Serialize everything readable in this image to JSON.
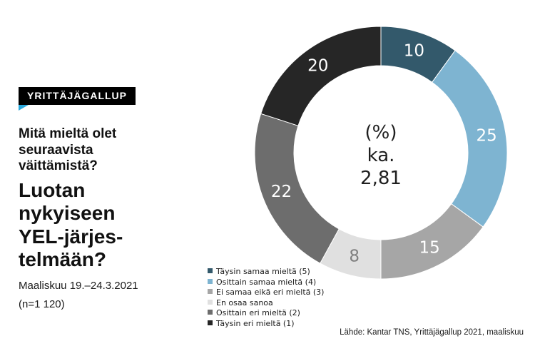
{
  "header": {
    "badge": "YRITTÄJÄGALLUP",
    "question_lines": [
      "Mitä mieltä olet",
      "seuraavista",
      "väittämistä?"
    ],
    "title_lines": [
      "Luotan",
      "nykyiseen",
      "YEL-järjes-",
      "telmään?"
    ],
    "period": "Maaliskuu 19.–24.3.2021",
    "sample": "(n=1 120)"
  },
  "chart_data": {
    "type": "pie",
    "subtype": "donut",
    "title": "Luotan nykyiseen YEL-järjestelmään? (%)",
    "direction": "clockwise",
    "start_angle_deg": 0,
    "legend_position": "bottom-left",
    "center_lines": [
      "(%)",
      "ka.",
      "2,81"
    ],
    "segments": [
      {
        "label": "Täysin samaa mieltä (5)",
        "value": 10,
        "color": "#33596b",
        "value_label_color": "#ffffff"
      },
      {
        "label": "Osittain samaa mieltä (4)",
        "value": 25,
        "color": "#7eb4d1",
        "value_label_color": "#ffffff"
      },
      {
        "label": "Ei samaa eikä eri mieltä (3)",
        "value": 15,
        "color": "#a6a6a6",
        "value_label_color": "#ffffff"
      },
      {
        "label": "En osaa sanoa",
        "value": 8,
        "color": "#e0e0e0",
        "value_label_color": "#7f7f7f"
      },
      {
        "label": "Osittain eri mieltä (2)",
        "value": 22,
        "color": "#6d6d6d",
        "value_label_color": "#ffffff"
      },
      {
        "label": "Täysin eri mieltä (1)",
        "value": 20,
        "color": "#262626",
        "value_label_color": "#ffffff"
      }
    ]
  },
  "footer": {
    "source": "Lähde: Kantar TNS, Yrittäjägallup 2021, maaliskuu"
  }
}
